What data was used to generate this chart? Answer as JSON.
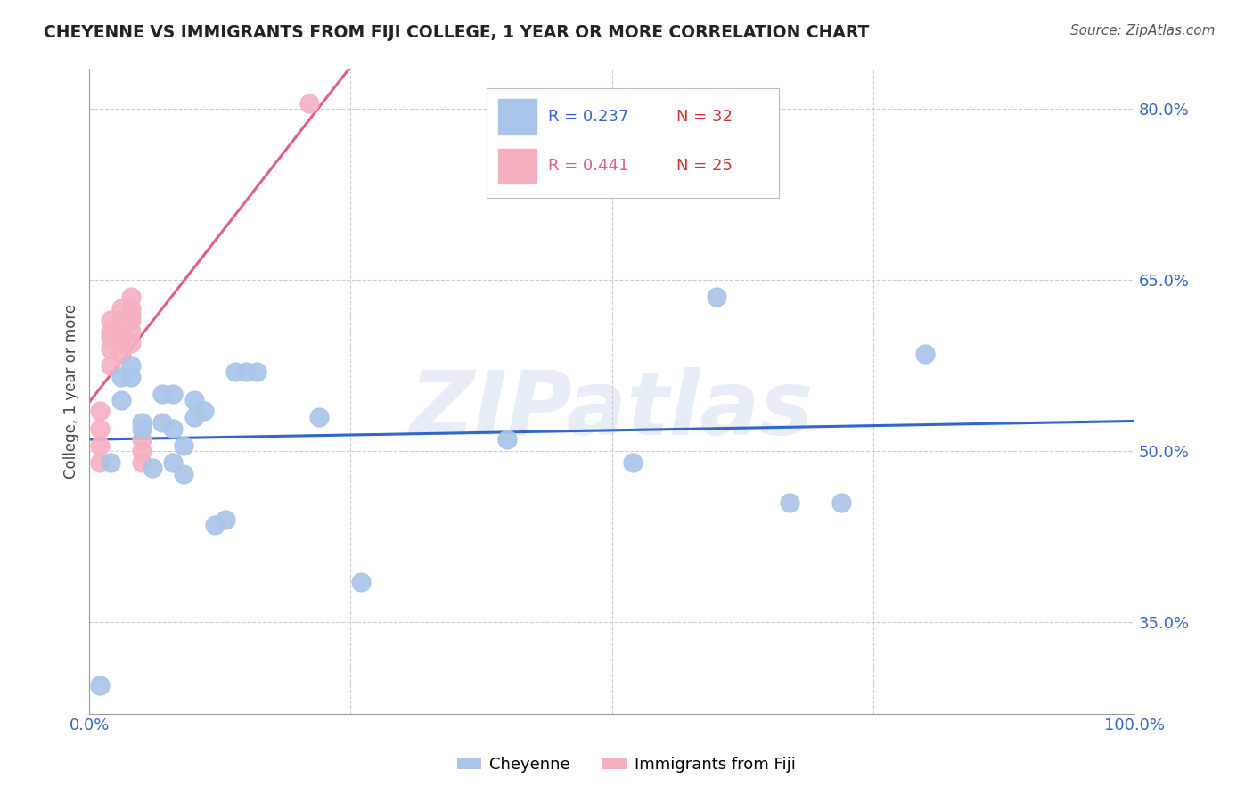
{
  "title": "CHEYENNE VS IMMIGRANTS FROM FIJI COLLEGE, 1 YEAR OR MORE CORRELATION CHART",
  "source": "Source: ZipAtlas.com",
  "ylabel": "College, 1 year or more",
  "xlim": [
    0.0,
    1.0
  ],
  "ylim": [
    0.27,
    0.835
  ],
  "x_ticks": [
    0.0,
    0.25,
    0.5,
    0.75,
    1.0
  ],
  "x_tick_labels": [
    "0.0%",
    "",
    "",
    "",
    "100.0%"
  ],
  "y_ticks": [
    0.35,
    0.5,
    0.65,
    0.8
  ],
  "y_tick_labels": [
    "35.0%",
    "50.0%",
    "65.0%",
    "80.0%"
  ],
  "cheyenne_R": 0.237,
  "cheyenne_N": 32,
  "fiji_R": 0.441,
  "fiji_N": 25,
  "cheyenne_color": "#a8c4e8",
  "fiji_color": "#f5b0c0",
  "cheyenne_line_color": "#3366cc",
  "fiji_line_color": "#e06080",
  "cheyenne_label_color": "#4488dd",
  "fiji_label_color": "#e06080",
  "n_color": "#cc3333",
  "background_color": "#ffffff",
  "grid_color": "#cccccc",
  "watermark": "ZIPatlas",
  "cheyenne_x": [
    0.01,
    0.02,
    0.03,
    0.03,
    0.04,
    0.04,
    0.05,
    0.05,
    0.06,
    0.07,
    0.07,
    0.08,
    0.08,
    0.08,
    0.09,
    0.09,
    0.1,
    0.1,
    0.11,
    0.12,
    0.13,
    0.14,
    0.15,
    0.16,
    0.22,
    0.26,
    0.4,
    0.52,
    0.6,
    0.67,
    0.72,
    0.8
  ],
  "cheyenne_y": [
    0.295,
    0.49,
    0.565,
    0.545,
    0.575,
    0.565,
    0.525,
    0.52,
    0.485,
    0.55,
    0.525,
    0.55,
    0.52,
    0.49,
    0.505,
    0.48,
    0.545,
    0.53,
    0.535,
    0.435,
    0.44,
    0.57,
    0.57,
    0.57,
    0.53,
    0.385,
    0.51,
    0.49,
    0.635,
    0.455,
    0.455,
    0.585
  ],
  "fiji_x": [
    0.01,
    0.01,
    0.01,
    0.01,
    0.02,
    0.02,
    0.02,
    0.02,
    0.02,
    0.03,
    0.03,
    0.03,
    0.03,
    0.03,
    0.03,
    0.04,
    0.04,
    0.04,
    0.04,
    0.04,
    0.04,
    0.05,
    0.05,
    0.05,
    0.21
  ],
  "fiji_y": [
    0.49,
    0.505,
    0.52,
    0.535,
    0.575,
    0.59,
    0.6,
    0.605,
    0.615,
    0.585,
    0.595,
    0.6,
    0.605,
    0.615,
    0.625,
    0.595,
    0.605,
    0.615,
    0.62,
    0.625,
    0.635,
    0.49,
    0.5,
    0.51,
    0.805
  ]
}
